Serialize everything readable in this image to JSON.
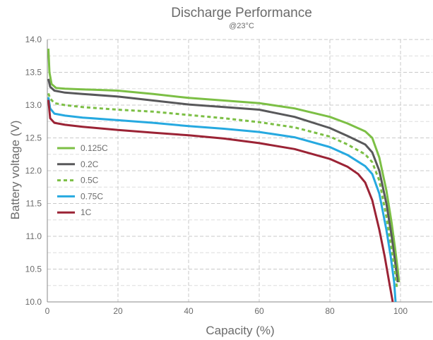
{
  "chart_data": {
    "type": "line",
    "title": "Discharge Performance",
    "subtitle": "@23°C",
    "xlabel": "Capacity (%)",
    "ylabel": "Battery voltage (V)",
    "xlim": [
      0,
      109
    ],
    "ylim": [
      10.0,
      14.0
    ],
    "x_ticks": [
      0,
      20,
      40,
      60,
      80,
      100
    ],
    "x_tick_labels": [
      "0",
      "20",
      "40",
      "60",
      "80",
      "100"
    ],
    "y_ticks": [
      10.0,
      10.5,
      11.0,
      11.5,
      12.0,
      12.5,
      13.0,
      13.5,
      14.0
    ],
    "y_tick_labels": [
      "10.0",
      "10.5",
      "11.0",
      "11.5",
      "12.0",
      "12.5",
      "13.0",
      "13.5",
      "14.0"
    ],
    "grid": true,
    "legend_position": "left-middle",
    "series": [
      {
        "name": "0.125C",
        "color": "#7cbf45",
        "dash": "solid",
        "points": [
          [
            0.3,
            13.86
          ],
          [
            0.6,
            13.5
          ],
          [
            1.2,
            13.32
          ],
          [
            2.5,
            13.26
          ],
          [
            5,
            13.25
          ],
          [
            10,
            13.24
          ],
          [
            20,
            13.22
          ],
          [
            30,
            13.17
          ],
          [
            40,
            13.11
          ],
          [
            50,
            13.07
          ],
          [
            60,
            13.03
          ],
          [
            70,
            12.95
          ],
          [
            80,
            12.82
          ],
          [
            85,
            12.72
          ],
          [
            90,
            12.6
          ],
          [
            92,
            12.5
          ],
          [
            94,
            12.2
          ],
          [
            96,
            11.7
          ],
          [
            97.5,
            11.2
          ],
          [
            98.5,
            10.8
          ],
          [
            99.2,
            10.5
          ],
          [
            99.6,
            10.3
          ]
        ]
      },
      {
        "name": "0.2C",
        "color": "#58585a",
        "dash": "solid",
        "points": [
          [
            0.3,
            13.4
          ],
          [
            0.8,
            13.28
          ],
          [
            2,
            13.22
          ],
          [
            5,
            13.19
          ],
          [
            10,
            13.17
          ],
          [
            20,
            13.13
          ],
          [
            30,
            13.07
          ],
          [
            40,
            13.01
          ],
          [
            50,
            12.97
          ],
          [
            60,
            12.93
          ],
          [
            70,
            12.82
          ],
          [
            80,
            12.65
          ],
          [
            85,
            12.53
          ],
          [
            90,
            12.4
          ],
          [
            92,
            12.28
          ],
          [
            94,
            12.0
          ],
          [
            96,
            11.5
          ],
          [
            97.5,
            11.0
          ],
          [
            98.5,
            10.6
          ],
          [
            99.2,
            10.3
          ]
        ]
      },
      {
        "name": "0.5C",
        "color": "#7cbf45",
        "dash": "dashed",
        "points": [
          [
            0.3,
            13.18
          ],
          [
            0.8,
            13.1
          ],
          [
            2,
            13.03
          ],
          [
            5,
            13.0
          ],
          [
            10,
            12.97
          ],
          [
            20,
            12.93
          ],
          [
            30,
            12.9
          ],
          [
            40,
            12.85
          ],
          [
            50,
            12.8
          ],
          [
            60,
            12.74
          ],
          [
            70,
            12.66
          ],
          [
            80,
            12.52
          ],
          [
            85,
            12.4
          ],
          [
            90,
            12.25
          ],
          [
            92,
            12.13
          ],
          [
            94,
            11.85
          ],
          [
            96,
            11.3
          ],
          [
            97.5,
            10.8
          ],
          [
            98.5,
            10.45
          ],
          [
            99.0,
            10.2
          ]
        ]
      },
      {
        "name": "0.75C",
        "color": "#26a9e0",
        "dash": "solid",
        "points": [
          [
            0.3,
            13.12
          ],
          [
            0.8,
            12.95
          ],
          [
            2,
            12.87
          ],
          [
            5,
            12.84
          ],
          [
            10,
            12.81
          ],
          [
            20,
            12.77
          ],
          [
            30,
            12.73
          ],
          [
            40,
            12.68
          ],
          [
            50,
            12.64
          ],
          [
            60,
            12.59
          ],
          [
            70,
            12.51
          ],
          [
            80,
            12.36
          ],
          [
            85,
            12.24
          ],
          [
            90,
            12.07
          ],
          [
            92,
            11.95
          ],
          [
            94,
            11.65
          ],
          [
            96,
            11.1
          ],
          [
            97.2,
            10.7
          ],
          [
            98.2,
            10.3
          ],
          [
            98.6,
            10.0
          ]
        ]
      },
      {
        "name": "1C",
        "color": "#9b2335",
        "dash": "solid",
        "points": [
          [
            0.3,
            13.08
          ],
          [
            0.8,
            12.8
          ],
          [
            2,
            12.73
          ],
          [
            5,
            12.7
          ],
          [
            10,
            12.67
          ],
          [
            20,
            12.62
          ],
          [
            30,
            12.58
          ],
          [
            40,
            12.54
          ],
          [
            50,
            12.49
          ],
          [
            60,
            12.42
          ],
          [
            70,
            12.33
          ],
          [
            80,
            12.18
          ],
          [
            85,
            12.06
          ],
          [
            88,
            11.95
          ],
          [
            90,
            11.82
          ],
          [
            92,
            11.55
          ],
          [
            94,
            11.1
          ],
          [
            95.5,
            10.7
          ],
          [
            96.8,
            10.3
          ],
          [
            97.8,
            10.0
          ]
        ]
      }
    ]
  }
}
